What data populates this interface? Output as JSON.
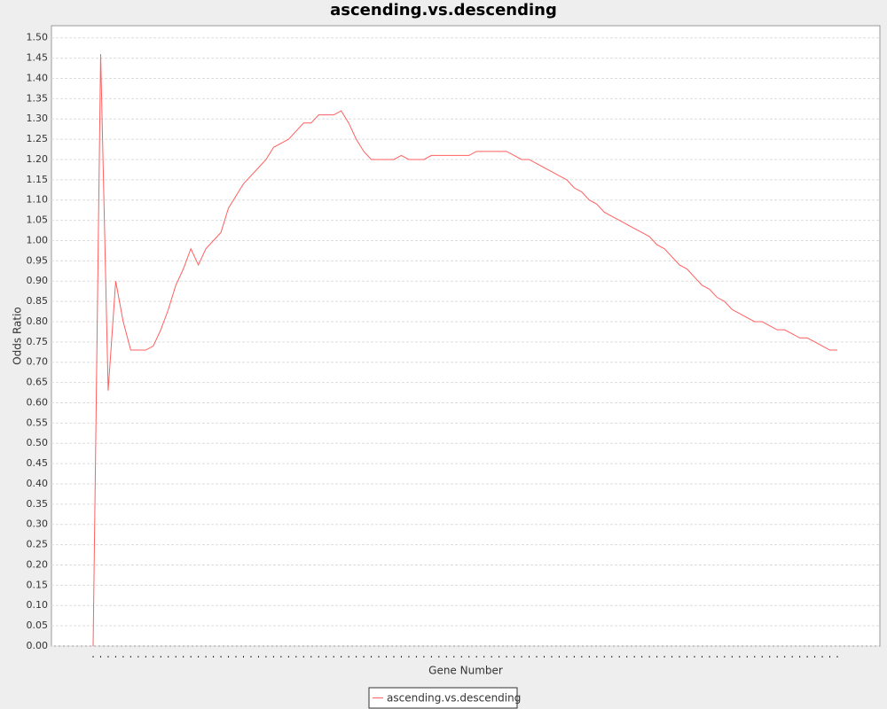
{
  "chart_data": {
    "type": "line",
    "title": "ascending.vs.descending",
    "x_label": "Gene Number",
    "y_label": "Odds Ratio",
    "categories": [
      null,
      null,
      null,
      null,
      null,
      null,
      null,
      null,
      null,
      null,
      null,
      null,
      null,
      null,
      null,
      null,
      null,
      null,
      null,
      null,
      null,
      null,
      null,
      null,
      null,
      null,
      null,
      null,
      null,
      null,
      null,
      null,
      null,
      null,
      null,
      null,
      null,
      null,
      null,
      null,
      null,
      null,
      null,
      null,
      null,
      null,
      null,
      null,
      null,
      null,
      null,
      null,
      null,
      null,
      null,
      null,
      null,
      null,
      null,
      null,
      null,
      null,
      null,
      null,
      null,
      null,
      null,
      null,
      null,
      null,
      null,
      null,
      null,
      null,
      null,
      null,
      null,
      null,
      null,
      null,
      null,
      null,
      null,
      null,
      null,
      null,
      null,
      null,
      null,
      null,
      null,
      null,
      null,
      null,
      null,
      null,
      null,
      null,
      null,
      null
    ],
    "series": [
      {
        "name": "ascending.vs.descending",
        "color": "#ff5f5f",
        "values": [
          0,
          1.46,
          0.63,
          0.9,
          0.8,
          0.73,
          0.73,
          0.73,
          0.74,
          0.78,
          0.83,
          0.89,
          0.93,
          0.98,
          0.94,
          0.98,
          1.0,
          1.02,
          1.08,
          1.11,
          1.14,
          1.16,
          1.18,
          1.2,
          1.23,
          1.24,
          1.25,
          1.27,
          1.29,
          1.29,
          1.31,
          1.31,
          1.31,
          1.32,
          1.29,
          1.25,
          1.22,
          1.2,
          1.2,
          1.2,
          1.2,
          1.21,
          1.2,
          1.2,
          1.2,
          1.21,
          1.21,
          1.21,
          1.21,
          1.21,
          1.21,
          1.22,
          1.22,
          1.22,
          1.22,
          1.22,
          1.21,
          1.2,
          1.2,
          1.19,
          1.18,
          1.17,
          1.16,
          1.15,
          1.13,
          1.12,
          1.1,
          1.09,
          1.07,
          1.06,
          1.05,
          1.04,
          1.03,
          1.02,
          1.01,
          0.99,
          0.98,
          0.96,
          0.94,
          0.93,
          0.91,
          0.89,
          0.88,
          0.86,
          0.85,
          0.83,
          0.82,
          0.81,
          0.8,
          0.8,
          0.79,
          0.78,
          0.78,
          0.77,
          0.76,
          0.76,
          0.75,
          0.74,
          0.73,
          0.73
        ]
      }
    ],
    "ylim": [
      0,
      1.53
    ],
    "yticks": [
      {
        "value": 0,
        "label": "0.00"
      },
      {
        "value": 0.05,
        "label": "0.05"
      },
      {
        "value": 0.1,
        "label": "0.10"
      },
      {
        "value": 0.15,
        "label": "0.15"
      },
      {
        "value": 0.2,
        "label": "0.20"
      },
      {
        "value": 0.25,
        "label": "0.25"
      },
      {
        "value": 0.3,
        "label": "0.30"
      },
      {
        "value": 0.35,
        "label": "0.35"
      },
      {
        "value": 0.4,
        "label": "0.40"
      },
      {
        "value": 0.45,
        "label": "0.45"
      },
      {
        "value": 0.5,
        "label": "0.50"
      },
      {
        "value": 0.55,
        "label": "0.55"
      },
      {
        "value": 0.6,
        "label": "0.60"
      },
      {
        "value": 0.65,
        "label": "0.65"
      },
      {
        "value": 0.7,
        "label": "0.70"
      },
      {
        "value": 0.75,
        "label": "0.75"
      },
      {
        "value": 0.8,
        "label": "0.80"
      },
      {
        "value": 0.85,
        "label": "0.85"
      },
      {
        "value": 0.9,
        "label": "0.90"
      },
      {
        "value": 0.95,
        "label": "0.95"
      },
      {
        "value": 1.0,
        "label": "1.00"
      },
      {
        "value": 1.05,
        "label": "1.05"
      },
      {
        "value": 1.1,
        "label": "1.10"
      },
      {
        "value": 1.15,
        "label": "1.15"
      },
      {
        "value": 1.2,
        "label": "1.20"
      },
      {
        "value": 1.25,
        "label": "1.25"
      },
      {
        "value": 1.3,
        "label": "1.30"
      },
      {
        "value": 1.35,
        "label": "1.35"
      },
      {
        "value": 1.4,
        "label": "1.40"
      },
      {
        "value": 1.45,
        "label": "1.45"
      },
      {
        "value": 1.5,
        "label": "1.50"
      }
    ],
    "grid": true,
    "legend": "bottom"
  }
}
